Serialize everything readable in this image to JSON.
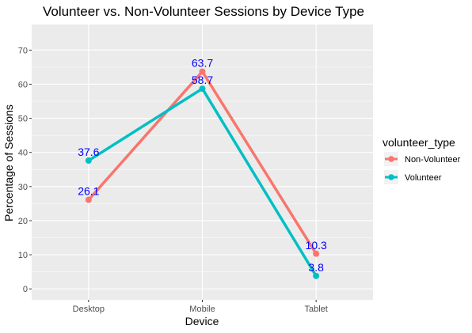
{
  "chart_data": {
    "type": "line",
    "title": "Volunteer vs. Non-Volunteer Sessions by Device Type",
    "xlabel": "Device",
    "ylabel": "Percentage of Sessions",
    "categories": [
      "Desktop",
      "Mobile",
      "Tablet"
    ],
    "ylim": [
      -3.2,
      77.5
    ],
    "yticks": [
      0,
      10,
      20,
      30,
      40,
      50,
      60,
      70
    ],
    "grid": true,
    "legend": {
      "title": "volunteer_type",
      "placement": "right"
    },
    "series": [
      {
        "name": "Non-Volunteer",
        "color": "#F8766D",
        "values": [
          26.1,
          63.7,
          10.3
        ],
        "labels": [
          "26.1",
          "63.7",
          "10.3"
        ]
      },
      {
        "name": "Volunteer",
        "color": "#00BFC4",
        "values": [
          37.6,
          58.7,
          3.8
        ],
        "labels": [
          "37.6",
          "58.7",
          "3.8"
        ]
      }
    ],
    "label_color": "#0000FF",
    "panel_color": "#EBEBEB"
  }
}
